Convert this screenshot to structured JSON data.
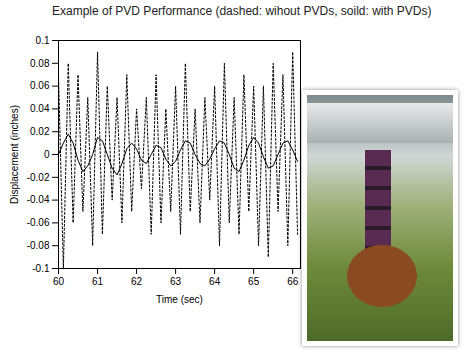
{
  "chart_data": {
    "type": "line",
    "title": "Example of PVD Performance (dashed: wihout PVDs, soild: with PVDs)",
    "x_label": "Time (sec)",
    "y_label": "Displacement (inches)",
    "x": [
      60,
      60.125,
      60.25,
      60.375,
      60.5,
      60.625,
      60.75,
      60.875,
      61,
      61.125,
      61.25,
      61.375,
      61.5,
      61.625,
      61.75,
      61.875,
      62,
      62.125,
      62.25,
      62.375,
      62.5,
      62.625,
      62.75,
      62.875,
      63,
      63.125,
      63.25,
      63.375,
      63.5,
      63.625,
      63.75,
      63.875,
      64,
      64.125,
      64.25,
      64.375,
      64.5,
      64.625,
      64.75,
      64.875,
      65,
      65.125,
      65.25,
      65.375,
      65.5,
      65.625,
      65.75,
      65.875,
      66,
      66.125
    ],
    "series": [
      {
        "color": "#000000",
        "line_style": "dashed",
        "values": [
          0.07,
          -0.1,
          0.08,
          -0.06,
          0.07,
          -0.05,
          0.05,
          -0.08,
          0.09,
          -0.07,
          0.06,
          -0.04,
          0.05,
          -0.06,
          0.07,
          -0.05,
          0.04,
          -0.03,
          0.05,
          -0.07,
          0.07,
          -0.06,
          0.04,
          -0.05,
          0.06,
          -0.07,
          0.08,
          -0.05,
          0.04,
          -0.06,
          0.05,
          -0.04,
          0.06,
          -0.08,
          0.08,
          -0.06,
          0.05,
          -0.07,
          0.07,
          -0.05,
          0.06,
          -0.08,
          0.06,
          -0.09,
          0.08,
          -0.05,
          0.07,
          -0.08,
          0.09,
          -0.07
        ]
      },
      {
        "color": "#000000",
        "line_style": "solid",
        "values": [
          0.0,
          0.01,
          0.018,
          0.01,
          -0.005,
          -0.015,
          -0.01,
          0.0,
          0.015,
          0.012,
          0.0,
          -0.012,
          -0.018,
          -0.008,
          0.005,
          0.01,
          0.005,
          -0.005,
          -0.008,
          0.0,
          0.008,
          0.006,
          -0.004,
          -0.01,
          -0.006,
          0.004,
          0.012,
          0.01,
          0.0,
          -0.008,
          -0.01,
          -0.004,
          0.005,
          0.012,
          0.01,
          0.0,
          -0.012,
          -0.015,
          -0.005,
          0.008,
          0.015,
          0.01,
          -0.002,
          -0.012,
          -0.01,
          0.0,
          0.01,
          0.012,
          0.004,
          -0.006
        ]
      }
    ],
    "xlim": [
      60,
      66.2
    ],
    "xticks": [
      60,
      61,
      62,
      63,
      64,
      65,
      66
    ],
    "ylim": [
      -0.1,
      0.1
    ],
    "yticks": [
      -0.1,
      -0.08,
      -0.06,
      -0.04,
      -0.02,
      0,
      0.02,
      0.04,
      0.06,
      0.08,
      0.1
    ],
    "grid": false
  }
}
